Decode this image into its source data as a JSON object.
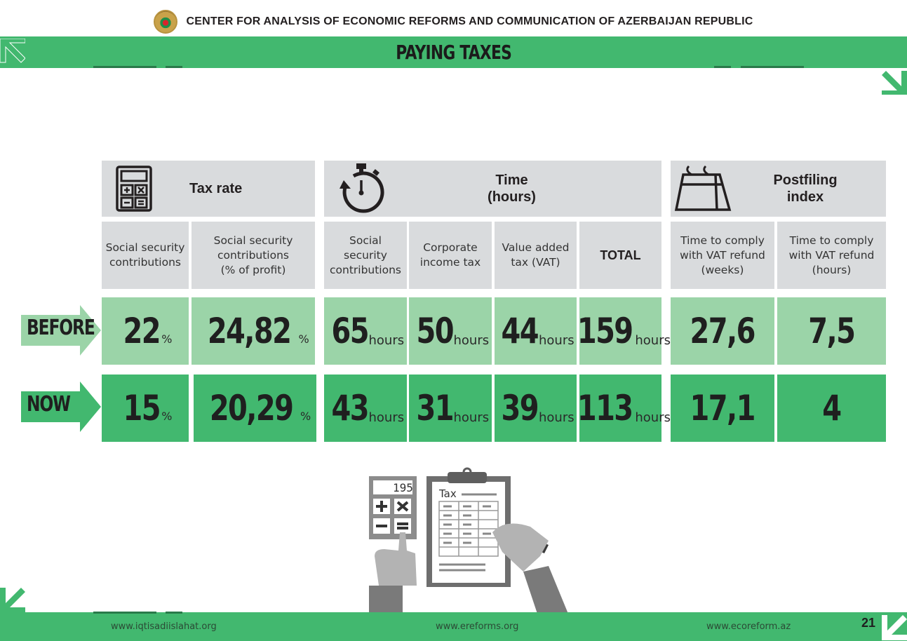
{
  "header": {
    "organization": "CENTER FOR ANALYSIS OF ECONOMIC REFORMS AND COMMUNICATION OF AZERBAIJAN REPUBLIC",
    "title": "PAYING TAXES"
  },
  "groups": [
    {
      "label": "Tax rate",
      "icon": "calculator-icon"
    },
    {
      "label_line1": "Time",
      "label_line2": "(hours)",
      "icon": "stopwatch-icon"
    },
    {
      "label_line1": "Postfiling",
      "label_line2": "index",
      "icon": "calendar-icon"
    }
  ],
  "columns": [
    {
      "line1": "Social security",
      "line2": "contributions",
      "line3": ""
    },
    {
      "line1": "Social security",
      "line2": "contributions",
      "line3": "(% of profit)"
    },
    {
      "line1": "Social security",
      "line2": "contributions",
      "line3": ""
    },
    {
      "line1": "Corporate",
      "line2": "income tax",
      "line3": ""
    },
    {
      "line1": "Value added",
      "line2": "tax (VAT)",
      "line3": ""
    },
    {
      "line1": "TOTAL",
      "line2": "",
      "line3": ""
    },
    {
      "line1": "Time to comply",
      "line2": "with VAT refund",
      "line3": "(weeks)"
    },
    {
      "line1": "Time to comply",
      "line2": "with VAT refund",
      "line3": "(hours)"
    }
  ],
  "rows": {
    "before": {
      "label": "BEFORE",
      "values": [
        "22",
        "24,82",
        "65",
        "50",
        "44",
        "159",
        "27,6",
        "7,5"
      ]
    },
    "now": {
      "label": "NOW",
      "values": [
        "15",
        "20,29",
        "43",
        "31",
        "39",
        "113",
        "17,1",
        "4"
      ]
    }
  },
  "units": {
    "percent": "%",
    "hours": "hours"
  },
  "illustration": {
    "display": "195",
    "form_label": "Tax"
  },
  "footer": {
    "link_left": "www.iqtisadiislahat.org",
    "link_center": "www.ereforms.org",
    "link_right": "www.ecoreform.az",
    "page_number": "21"
  },
  "colors": {
    "green": "#42b86f",
    "light_green": "#9bd4a8",
    "header_gray": "#d9dbdd"
  }
}
